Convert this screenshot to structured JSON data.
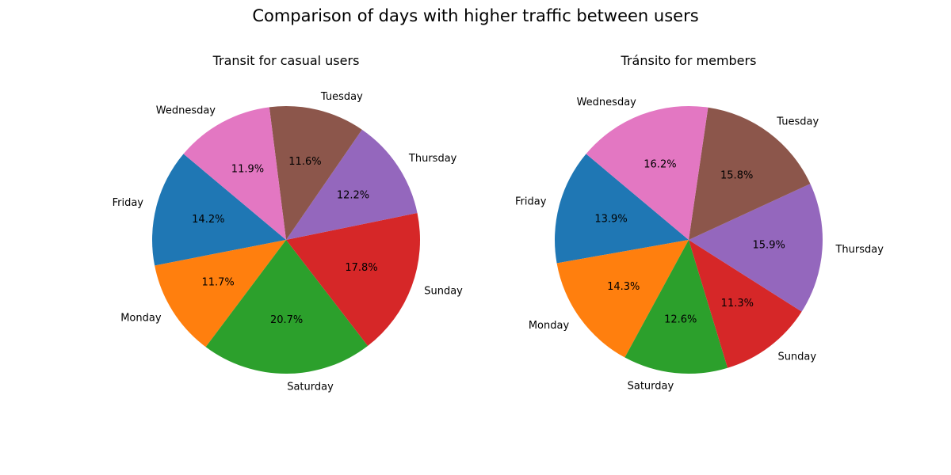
{
  "figure": {
    "title": "Comparison of days with higher traffic between users"
  },
  "chart_data": [
    {
      "type": "pie",
      "title": "Transit for casual users",
      "slices": [
        {
          "label": "Friday",
          "value": 14.2,
          "pct_label": "14.2%",
          "color": "#1f77b4"
        },
        {
          "label": "Monday",
          "value": 11.7,
          "pct_label": "11.7%",
          "color": "#ff7f0e"
        },
        {
          "label": "Saturday",
          "value": 20.7,
          "pct_label": "20.7%",
          "color": "#2ca02c"
        },
        {
          "label": "Sunday",
          "value": 17.8,
          "pct_label": "17.8%",
          "color": "#d62728"
        },
        {
          "label": "Thursday",
          "value": 12.2,
          "pct_label": "12.2%",
          "color": "#9467bd"
        },
        {
          "label": "Tuesday",
          "value": 11.6,
          "pct_label": "11.6%",
          "color": "#8c564b"
        },
        {
          "label": "Wednesday",
          "value": 11.9,
          "pct_label": "11.9%",
          "color": "#e377c2"
        }
      ],
      "start_angle_deg": 140,
      "direction": "counterclockwise"
    },
    {
      "type": "pie",
      "title": "Tránsito for members",
      "slices": [
        {
          "label": "Friday",
          "value": 13.9,
          "pct_label": "13.9%",
          "color": "#1f77b4"
        },
        {
          "label": "Monday",
          "value": 14.3,
          "pct_label": "14.3%",
          "color": "#ff7f0e"
        },
        {
          "label": "Saturday",
          "value": 12.6,
          "pct_label": "12.6%",
          "color": "#2ca02c"
        },
        {
          "label": "Sunday",
          "value": 11.3,
          "pct_label": "11.3%",
          "color": "#d62728"
        },
        {
          "label": "Thursday",
          "value": 15.9,
          "pct_label": "15.9%",
          "color": "#9467bd"
        },
        {
          "label": "Tuesday",
          "value": 15.8,
          "pct_label": "15.8%",
          "color": "#8c564b"
        },
        {
          "label": "Wednesday",
          "value": 16.2,
          "pct_label": "16.2%",
          "color": "#e377c2"
        }
      ],
      "start_angle_deg": 140,
      "direction": "counterclockwise"
    }
  ]
}
